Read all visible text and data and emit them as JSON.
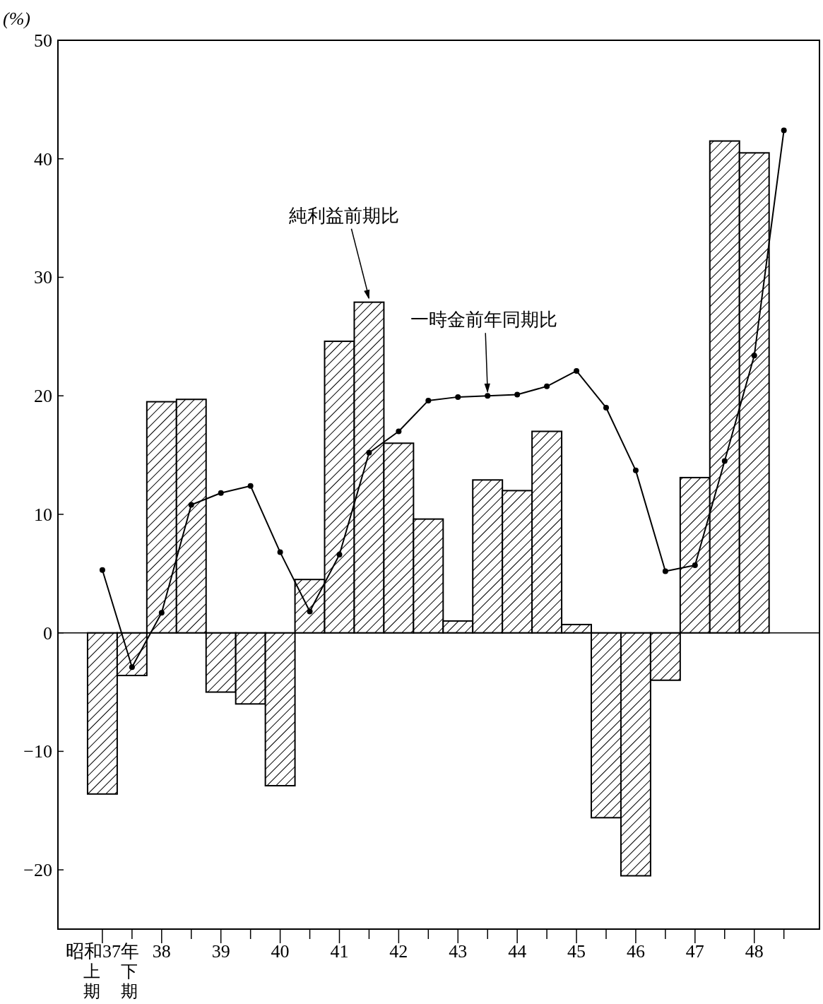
{
  "chart_data": {
    "type": "bar",
    "ylabel": "(%)",
    "categories": [
      "昭和37年",
      null,
      "38",
      null,
      "39",
      null,
      "40",
      null,
      "41",
      null,
      "42",
      null,
      "43",
      null,
      "44",
      null,
      "45",
      null,
      "46",
      null,
      "47",
      null,
      "48",
      null
    ],
    "series": [
      {
        "name": "純利益前期比",
        "color": "#000000",
        "values": [
          -13.6,
          -3.6,
          19.5,
          19.7,
          -5.0,
          -6.0,
          -12.9,
          4.5,
          24.6,
          27.9,
          16.0,
          9.6,
          1.0,
          12.9,
          12.0,
          17.0,
          0.7,
          -15.6,
          -20.5,
          -4.0,
          13.1,
          41.5,
          40.5,
          null
        ]
      },
      {
        "name": "一時金前年同期比",
        "type": "line",
        "color": "#000000",
        "values": [
          5.3,
          -2.9,
          1.7,
          10.8,
          11.8,
          12.4,
          6.8,
          1.8,
          6.6,
          15.2,
          17.0,
          19.6,
          19.9,
          20.0,
          20.1,
          20.8,
          22.1,
          19.0,
          13.7,
          5.2,
          5.7,
          14.5,
          23.4,
          42.4
        ]
      }
    ],
    "ylim": [
      -25,
      50
    ],
    "yticks": [
      {
        "value": -20,
        "label": "−20"
      },
      {
        "value": -10,
        "label": "−10"
      },
      0,
      10,
      20,
      30,
      40,
      50
    ],
    "ref_lines": [
      {
        "axis": "y",
        "value": 0
      }
    ],
    "annotations": [
      "上期",
      "下期"
    ],
    "marker": "circle",
    "grid": false,
    "legend": false
  }
}
